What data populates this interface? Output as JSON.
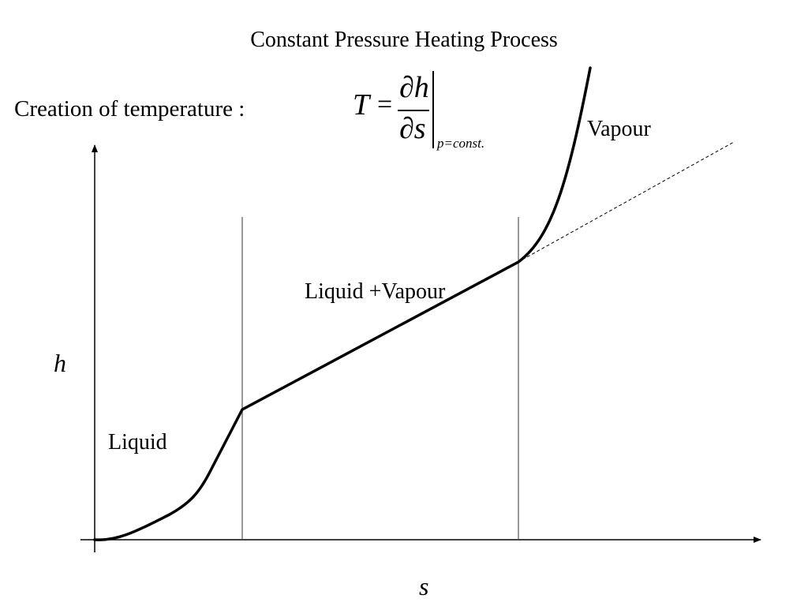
{
  "title": "Constant Pressure Heating Process",
  "equation": {
    "prefix": "Creation of temperature :",
    "lhs": "T",
    "equals": "=",
    "numerator": "∂h",
    "denominator": "∂s",
    "subscript": "p=const."
  },
  "axes": {
    "x_label": "s",
    "y_label": "h"
  },
  "regions": {
    "liquid": "Liquid",
    "mixture": "Liquid +Vapour",
    "vapour": "Vapour"
  },
  "colors": {
    "curve": "#000000",
    "boundary": "#555555"
  }
}
